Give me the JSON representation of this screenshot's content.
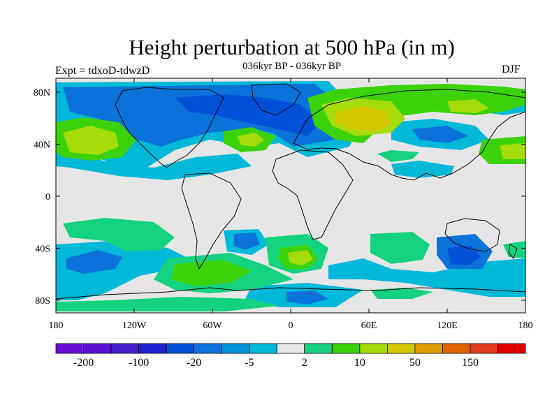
{
  "header": {
    "title": "Height perturbation at 500 hPa (in m)",
    "subtitle": "036kyr BP - 036kyr BP",
    "left_label": "Expt = tdxoD-tdwzD",
    "right_label": "DJF"
  },
  "axes": {
    "y_ticks": [
      "80N",
      "40N",
      "0",
      "40S",
      "80S"
    ],
    "x_ticks": [
      "180",
      "120W",
      "60W",
      "0",
      "60E",
      "120E",
      "180"
    ]
  },
  "colorbar": {
    "colors": [
      "#6a0fd8",
      "#5a10d2",
      "#4420cc",
      "#2020d0",
      "#0050d8",
      "#0a72d8",
      "#0094d8",
      "#00b8d8",
      "#e6e6e6",
      "#14d280",
      "#3cd20a",
      "#a6dc0a",
      "#d2c800",
      "#e0a000",
      "#e06400",
      "#e03c1e",
      "#e00000"
    ],
    "labels": [
      "-200",
      "-100",
      "-20",
      "-5",
      "2",
      "10",
      "50",
      "150"
    ]
  },
  "map": {
    "ocean_color": "#e6e6e6"
  }
}
